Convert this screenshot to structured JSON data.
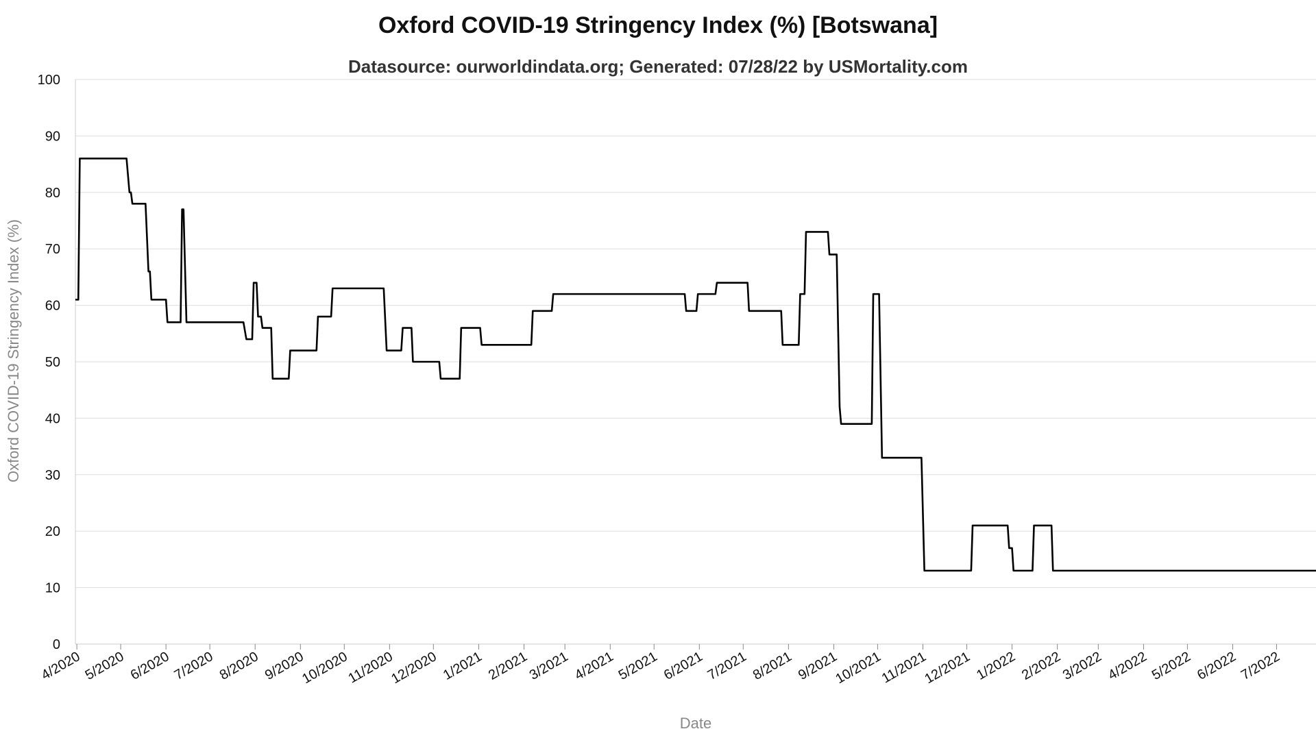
{
  "chart_data": {
    "type": "line",
    "title": "Oxford COVID-19 Stringency Index (%) [Botswana]",
    "subtitle": "Datasource: ourworldindata.org; Generated: 07/28/22 by USMortality.com",
    "xlabel": "Date",
    "ylabel": "Oxford COVID-19 Stringency Index (%)",
    "ylim": [
      0,
      100
    ],
    "xlim": [
      "2020-03-31",
      "2022-07-28"
    ],
    "yticks": [
      0,
      10,
      20,
      30,
      40,
      50,
      60,
      70,
      80,
      90,
      100
    ],
    "xtick_dates": [
      "2020-04-01",
      "2020-05-01",
      "2020-06-01",
      "2020-07-01",
      "2020-08-01",
      "2020-09-01",
      "2020-10-01",
      "2020-11-01",
      "2020-12-01",
      "2021-01-01",
      "2021-02-01",
      "2021-03-01",
      "2021-04-01",
      "2021-05-01",
      "2021-06-01",
      "2021-07-01",
      "2021-08-01",
      "2021-09-01",
      "2021-10-01",
      "2021-11-01",
      "2021-12-01",
      "2022-01-01",
      "2022-02-01",
      "2022-03-01",
      "2022-04-01",
      "2022-05-01",
      "2022-06-01",
      "2022-07-01"
    ],
    "xtick_labels": [
      "4/2020",
      "5/2020",
      "6/2020",
      "7/2020",
      "8/2020",
      "9/2020",
      "10/2020",
      "11/2020",
      "12/2020",
      "1/2021",
      "2/2021",
      "3/2021",
      "4/2021",
      "5/2021",
      "6/2021",
      "7/2021",
      "8/2021",
      "9/2021",
      "10/2021",
      "11/2021",
      "12/2021",
      "1/2022",
      "2/2022",
      "3/2022",
      "4/2022",
      "5/2022",
      "6/2022",
      "7/2022"
    ],
    "grid": true,
    "legend": "none",
    "series": [
      {
        "color": "#000000",
        "points": [
          [
            "2020-03-31",
            61
          ],
          [
            "2020-04-02",
            61
          ],
          [
            "2020-04-03",
            86
          ],
          [
            "2020-05-05",
            86
          ],
          [
            "2020-05-07",
            80
          ],
          [
            "2020-05-08",
            80
          ],
          [
            "2020-05-09",
            78
          ],
          [
            "2020-05-18",
            78
          ],
          [
            "2020-05-20",
            66
          ],
          [
            "2020-05-21",
            66
          ],
          [
            "2020-05-22",
            61
          ],
          [
            "2020-06-01",
            61
          ],
          [
            "2020-06-02",
            57
          ],
          [
            "2020-06-11",
            57
          ],
          [
            "2020-06-12",
            77
          ],
          [
            "2020-06-13",
            77
          ],
          [
            "2020-06-15",
            57
          ],
          [
            "2020-07-24",
            57
          ],
          [
            "2020-07-26",
            54
          ],
          [
            "2020-07-30",
            54
          ],
          [
            "2020-07-31",
            64
          ],
          [
            "2020-08-02",
            64
          ],
          [
            "2020-08-03",
            58
          ],
          [
            "2020-08-05",
            58
          ],
          [
            "2020-08-06",
            56
          ],
          [
            "2020-08-12",
            56
          ],
          [
            "2020-08-13",
            47
          ],
          [
            "2020-08-24",
            47
          ],
          [
            "2020-08-25",
            52
          ],
          [
            "2020-09-12",
            52
          ],
          [
            "2020-09-13",
            58
          ],
          [
            "2020-09-22",
            58
          ],
          [
            "2020-09-23",
            63
          ],
          [
            "2020-10-28",
            63
          ],
          [
            "2020-10-30",
            52
          ],
          [
            "2020-11-09",
            52
          ],
          [
            "2020-11-10",
            56
          ],
          [
            "2020-11-16",
            56
          ],
          [
            "2020-11-17",
            50
          ],
          [
            "2020-12-05",
            50
          ],
          [
            "2020-12-06",
            47
          ],
          [
            "2020-12-19",
            47
          ],
          [
            "2020-12-20",
            56
          ],
          [
            "2021-01-02",
            56
          ],
          [
            "2021-01-03",
            53
          ],
          [
            "2021-02-06",
            53
          ],
          [
            "2021-02-07",
            59
          ],
          [
            "2021-02-20",
            59
          ],
          [
            "2021-02-21",
            62
          ],
          [
            "2021-05-22",
            62
          ],
          [
            "2021-05-23",
            59
          ],
          [
            "2021-05-30",
            59
          ],
          [
            "2021-05-31",
            62
          ],
          [
            "2021-06-12",
            62
          ],
          [
            "2021-06-13",
            64
          ],
          [
            "2021-07-04",
            64
          ],
          [
            "2021-07-05",
            59
          ],
          [
            "2021-07-27",
            59
          ],
          [
            "2021-07-28",
            53
          ],
          [
            "2021-08-08",
            53
          ],
          [
            "2021-08-09",
            62
          ],
          [
            "2021-08-12",
            62
          ],
          [
            "2021-08-13",
            73
          ],
          [
            "2021-08-28",
            73
          ],
          [
            "2021-08-29",
            69
          ],
          [
            "2021-09-03",
            69
          ],
          [
            "2021-09-05",
            42
          ],
          [
            "2021-09-06",
            39
          ],
          [
            "2021-09-27",
            39
          ],
          [
            "2021-09-28",
            62
          ],
          [
            "2021-10-02",
            62
          ],
          [
            "2021-10-04",
            33
          ],
          [
            "2021-10-31",
            33
          ],
          [
            "2021-11-02",
            13
          ],
          [
            "2021-12-04",
            13
          ],
          [
            "2021-12-05",
            21
          ],
          [
            "2021-12-29",
            21
          ],
          [
            "2021-12-30",
            17
          ],
          [
            "2022-01-01",
            17
          ],
          [
            "2022-01-02",
            13
          ],
          [
            "2022-01-15",
            13
          ],
          [
            "2022-01-16",
            21
          ],
          [
            "2022-01-28",
            21
          ],
          [
            "2022-01-29",
            13
          ],
          [
            "2022-07-28",
            13
          ]
        ]
      }
    ]
  }
}
